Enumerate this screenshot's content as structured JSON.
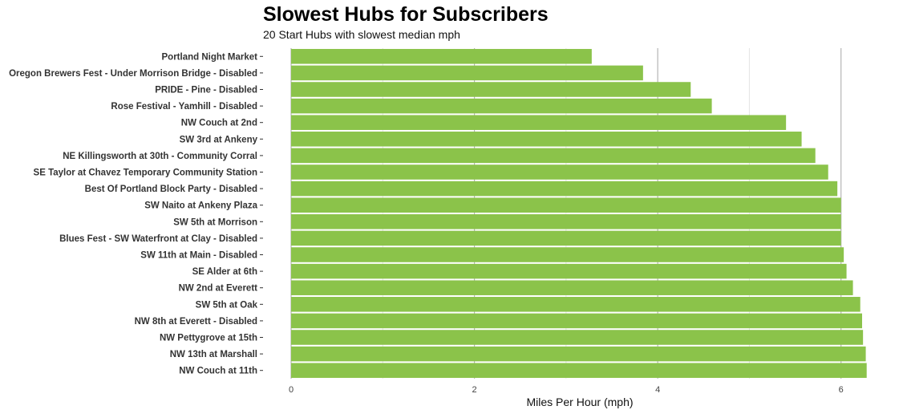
{
  "chart_data": {
    "type": "bar",
    "orientation": "horizontal",
    "title": "Slowest Hubs for Subscribers",
    "subtitle": "20 Start Hubs with slowest median mph",
    "xlabel": "Miles Per Hour (mph)",
    "ylabel": "",
    "xlim": [
      0,
      6.3
    ],
    "xticks": [
      0,
      2,
      4,
      6
    ],
    "bar_color": "#8bc34a",
    "grid": true,
    "categories": [
      "Portland Night Market",
      "Oregon Brewers Fest - Under Morrison Bridge - Disabled",
      "PRIDE - Pine - Disabled",
      "Rose Festival - Yamhill - Disabled",
      "NW Couch at 2nd",
      "SW 3rd at Ankeny",
      "NE Killingsworth at 30th - Community Corral",
      "SE Taylor at Chavez Temporary Community Station",
      "Best Of Portland Block Party - Disabled",
      "SW Naito at Ankeny Plaza",
      "SW 5th at Morrison",
      "Blues Fest - SW Waterfront at Clay - Disabled",
      "SW 11th at Main - Disabled",
      "SE Alder at 6th",
      "NW 2nd at Everett",
      "SW 5th at Oak",
      "NW 8th at Everett - Disabled",
      "NW Pettygrove at 15th",
      "NW 13th at Marshall",
      "NW Couch at 11th"
    ],
    "values": [
      3.28,
      3.84,
      4.36,
      4.59,
      5.4,
      5.57,
      5.72,
      5.86,
      5.96,
      6.0,
      6.0,
      6.0,
      6.03,
      6.06,
      6.13,
      6.21,
      6.23,
      6.24,
      6.27,
      6.28
    ]
  }
}
